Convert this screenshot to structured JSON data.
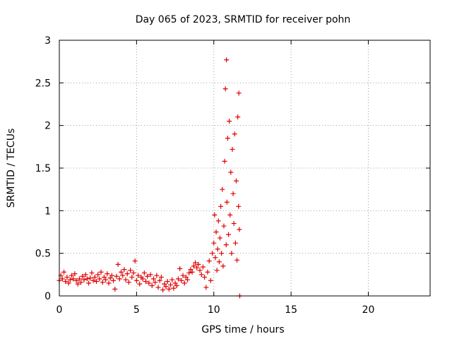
{
  "chart_data": {
    "type": "scatter",
    "title": "Day 065 of 2023, SRMTID for receiver pohn",
    "xlabel": "GPS time / hours",
    "ylabel": "SRMTID / TECUs",
    "xlim": [
      0,
      24
    ],
    "ylim": [
      0,
      3
    ],
    "xticks": [
      0,
      5,
      10,
      15,
      20
    ],
    "yticks": [
      0,
      0.5,
      1,
      1.5,
      2,
      2.5,
      3
    ],
    "xtick_labels": [
      "0",
      "5",
      "10",
      "15",
      "20"
    ],
    "ytick_labels": [
      "0",
      "0.5",
      "1",
      "1.5",
      "2",
      "2.5",
      "3"
    ],
    "grid": true,
    "marker": "+",
    "series": [
      {
        "name": "SRMTID",
        "color": "#e00000",
        "points": [
          [
            0.0,
            0.18
          ],
          [
            0.1,
            0.24
          ],
          [
            0.2,
            0.2
          ],
          [
            0.3,
            0.28
          ],
          [
            0.4,
            0.17
          ],
          [
            0.5,
            0.22
          ],
          [
            0.6,
            0.15
          ],
          [
            0.7,
            0.19
          ],
          [
            0.8,
            0.24
          ],
          [
            0.9,
            0.2
          ],
          [
            1.0,
            0.26
          ],
          [
            1.1,
            0.18
          ],
          [
            1.2,
            0.14
          ],
          [
            1.3,
            0.2
          ],
          [
            1.4,
            0.16
          ],
          [
            1.5,
            0.23
          ],
          [
            1.6,
            0.19
          ],
          [
            1.7,
            0.25
          ],
          [
            1.8,
            0.2
          ],
          [
            1.9,
            0.15
          ],
          [
            2.0,
            0.21
          ],
          [
            2.1,
            0.27
          ],
          [
            2.2,
            0.18
          ],
          [
            2.3,
            0.22
          ],
          [
            2.4,
            0.17
          ],
          [
            2.5,
            0.25
          ],
          [
            2.6,
            0.2
          ],
          [
            2.7,
            0.28
          ],
          [
            2.8,
            0.16
          ],
          [
            2.9,
            0.22
          ],
          [
            3.0,
            0.19
          ],
          [
            3.1,
            0.26
          ],
          [
            3.2,
            0.15
          ],
          [
            3.3,
            0.21
          ],
          [
            3.4,
            0.24
          ],
          [
            3.5,
            0.18
          ],
          [
            3.6,
            0.08
          ],
          [
            3.7,
            0.23
          ],
          [
            3.8,
            0.37
          ],
          [
            3.9,
            0.2
          ],
          [
            4.0,
            0.28
          ],
          [
            4.1,
            0.24
          ],
          [
            4.2,
            0.31
          ],
          [
            4.3,
            0.19
          ],
          [
            4.4,
            0.26
          ],
          [
            4.5,
            0.16
          ],
          [
            4.6,
            0.3
          ],
          [
            4.7,
            0.22
          ],
          [
            4.8,
            0.27
          ],
          [
            4.9,
            0.41
          ],
          [
            5.0,
            0.18
          ],
          [
            5.1,
            0.24
          ],
          [
            5.2,
            0.14
          ],
          [
            5.3,
            0.22
          ],
          [
            5.4,
            0.2
          ],
          [
            5.5,
            0.27
          ],
          [
            5.6,
            0.17
          ],
          [
            5.7,
            0.23
          ],
          [
            5.8,
            0.15
          ],
          [
            5.9,
            0.25
          ],
          [
            6.0,
            0.12
          ],
          [
            6.1,
            0.2
          ],
          [
            6.2,
            0.16
          ],
          [
            6.3,
            0.24
          ],
          [
            6.4,
            0.1
          ],
          [
            6.5,
            0.18
          ],
          [
            6.6,
            0.22
          ],
          [
            6.7,
            0.07
          ],
          [
            6.8,
            0.14
          ],
          [
            6.9,
            0.11
          ],
          [
            7.0,
            0.17
          ],
          [
            7.1,
            0.08
          ],
          [
            7.2,
            0.13
          ],
          [
            7.3,
            0.19
          ],
          [
            7.4,
            0.09
          ],
          [
            7.5,
            0.15
          ],
          [
            7.6,
            0.12
          ],
          [
            7.7,
            0.2
          ],
          [
            7.8,
            0.32
          ],
          [
            7.9,
            0.18
          ],
          [
            8.0,
            0.24
          ],
          [
            8.1,
            0.15
          ],
          [
            8.2,
            0.22
          ],
          [
            8.3,
            0.19
          ],
          [
            8.4,
            0.27
          ],
          [
            8.5,
            0.31
          ],
          [
            8.6,
            0.28
          ],
          [
            8.7,
            0.35
          ],
          [
            8.8,
            0.39
          ],
          [
            8.9,
            0.33
          ],
          [
            9.0,
            0.37
          ],
          [
            9.1,
            0.3
          ],
          [
            9.2,
            0.25
          ],
          [
            9.3,
            0.34
          ],
          [
            9.4,
            0.22
          ],
          [
            9.5,
            0.1
          ],
          [
            9.6,
            0.28
          ],
          [
            9.7,
            0.41
          ],
          [
            9.8,
            0.18
          ],
          [
            9.9,
            0.5
          ],
          [
            10.0,
            0.62
          ],
          [
            10.05,
            0.95
          ],
          [
            10.1,
            0.45
          ],
          [
            10.15,
            0.75
          ],
          [
            10.2,
            0.3
          ],
          [
            10.25,
            0.55
          ],
          [
            10.3,
            0.88
          ],
          [
            10.35,
            0.4
          ],
          [
            10.4,
            0.68
          ],
          [
            10.45,
            1.05
          ],
          [
            10.5,
            0.5
          ],
          [
            10.55,
            1.25
          ],
          [
            10.6,
            0.35
          ],
          [
            10.65,
            0.82
          ],
          [
            10.7,
            1.58
          ],
          [
            10.75,
            2.43
          ],
          [
            10.8,
            0.6
          ],
          [
            10.82,
            2.77
          ],
          [
            10.85,
            1.1
          ],
          [
            10.9,
            1.85
          ],
          [
            10.95,
            0.72
          ],
          [
            11.0,
            2.05
          ],
          [
            11.05,
            0.95
          ],
          [
            11.1,
            1.45
          ],
          [
            11.15,
            0.5
          ],
          [
            11.2,
            1.72
          ],
          [
            11.25,
            1.2
          ],
          [
            11.3,
            0.85
          ],
          [
            11.35,
            1.9
          ],
          [
            11.4,
            0.62
          ],
          [
            11.45,
            1.35
          ],
          [
            11.5,
            0.42
          ],
          [
            11.55,
            2.1
          ],
          [
            11.6,
            1.05
          ],
          [
            11.62,
            2.38
          ],
          [
            11.65,
            0.78
          ],
          [
            11.68,
            0.0
          ]
        ]
      }
    ]
  }
}
